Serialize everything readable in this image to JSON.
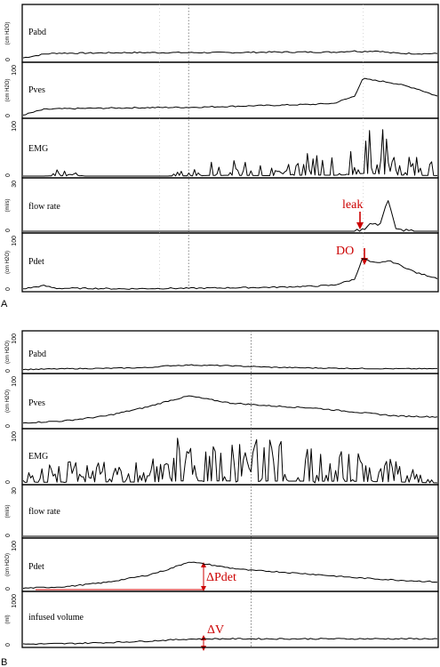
{
  "figures": [
    {
      "label": "A",
      "panels": [
        {
          "name": "Pabd",
          "unit": "(cm H2O)",
          "top_tick": ""
        },
        {
          "name": "Pves",
          "unit": "(cm H2O)",
          "top_tick": "100"
        },
        {
          "name": "EMG",
          "unit": "",
          "top_tick": "100"
        },
        {
          "name": "flow rate",
          "unit": "(ml/s)",
          "top_tick": "30"
        },
        {
          "name": "Pdet",
          "unit": "(cm H2O)",
          "top_tick": "100"
        }
      ],
      "annotations": [
        {
          "text": "leak",
          "panel": "flow rate"
        },
        {
          "text": "DO",
          "panel": "Pdet"
        }
      ]
    },
    {
      "label": "B",
      "panels": [
        {
          "name": "Pabd",
          "unit": "(cm H2O)",
          "top_tick": "100"
        },
        {
          "name": "Pves",
          "unit": "(cm H2O)",
          "top_tick": "100"
        },
        {
          "name": "EMG",
          "unit": "",
          "top_tick": "100"
        },
        {
          "name": "flow rate",
          "unit": "(ml/s)",
          "top_tick": "30"
        },
        {
          "name": "Pdet",
          "unit": "(cm H2O)",
          "top_tick": "100"
        },
        {
          "name": "infused volume",
          "unit": "(ml)",
          "top_tick": "1000"
        }
      ],
      "annotations": [
        {
          "text": "ΔPdet",
          "panel": "Pdet"
        },
        {
          "text": "ΔV",
          "panel": "infused volume"
        }
      ]
    }
  ],
  "chart_data": [
    {
      "type": "line",
      "title": "",
      "xlabel": "",
      "x": [
        0,
        0.05,
        0.08,
        0.15,
        0.25,
        0.35,
        0.4,
        0.5,
        0.6,
        0.7,
        0.75,
        0.8,
        0.82,
        0.84,
        0.86,
        0.88,
        0.9,
        0.95,
        1.0
      ],
      "series": [
        {
          "name": "Pabd",
          "ylim": [
            0,
            100
          ],
          "values": [
            5,
            12,
            14,
            14,
            15,
            15,
            15,
            15,
            16,
            16,
            16,
            18,
            17,
            18,
            18,
            15,
            14,
            13,
            13
          ]
        },
        {
          "name": "Pves",
          "ylim": [
            0,
            100
          ],
          "values": [
            3,
            14,
            15,
            16,
            17,
            18,
            18,
            20,
            22,
            24,
            26,
            40,
            75,
            72,
            70,
            68,
            65,
            55,
            40
          ]
        },
        {
          "name": "EMG",
          "ylim": [
            0,
            100
          ],
          "values": [
            0,
            0,
            15,
            0,
            0,
            0,
            15,
            30,
            15,
            40,
            30,
            60,
            100,
            90,
            80,
            70,
            40,
            30,
            20
          ]
        },
        {
          "name": "flow rate",
          "ylim": [
            0,
            30
          ],
          "values": [
            0,
            0,
            0,
            0,
            0,
            0,
            0,
            0,
            0,
            0,
            0,
            0,
            1,
            5,
            3,
            20,
            1,
            0,
            0
          ]
        },
        {
          "name": "Pdet",
          "ylim": [
            0,
            100
          ],
          "values": [
            2,
            8,
            3,
            3,
            2,
            3,
            3,
            4,
            5,
            7,
            9,
            20,
            60,
            52,
            50,
            55,
            50,
            32,
            22
          ]
        }
      ]
    },
    {
      "type": "line",
      "title": "",
      "xlabel": "",
      "x": [
        0,
        0.1,
        0.2,
        0.3,
        0.35,
        0.4,
        0.45,
        0.5,
        0.55,
        0.6,
        0.7,
        0.8,
        0.9,
        1.0
      ],
      "series": [
        {
          "name": "Pabd",
          "ylim": [
            0,
            100
          ],
          "values": [
            6,
            8,
            9,
            11,
            16,
            18,
            17,
            16,
            14,
            12,
            10,
            9,
            8,
            8
          ]
        },
        {
          "name": "Pves",
          "ylim": [
            0,
            100
          ],
          "values": [
            8,
            12,
            22,
            40,
            52,
            62,
            55,
            48,
            45,
            42,
            38,
            30,
            22,
            20
          ]
        },
        {
          "name": "EMG",
          "ylim": [
            0,
            100
          ],
          "values": [
            20,
            35,
            40,
            30,
            60,
            85,
            80,
            75,
            75,
            70,
            70,
            60,
            40,
            0
          ]
        },
        {
          "name": "flow rate",
          "ylim": [
            0,
            30
          ],
          "values": [
            0,
            0,
            0,
            0,
            0,
            0,
            0,
            0,
            0,
            0,
            0,
            0,
            0,
            0
          ]
        },
        {
          "name": "Pdet",
          "ylim": [
            0,
            100
          ],
          "values": [
            3,
            6,
            15,
            30,
            42,
            58,
            52,
            45,
            40,
            38,
            32,
            25,
            20,
            16
          ]
        },
        {
          "name": "infused volume",
          "ylim": [
            0,
            1000
          ],
          "values": [
            30,
            40,
            60,
            90,
            110,
            130,
            135,
            135,
            135,
            135,
            135,
            135,
            135,
            135
          ]
        }
      ]
    }
  ]
}
